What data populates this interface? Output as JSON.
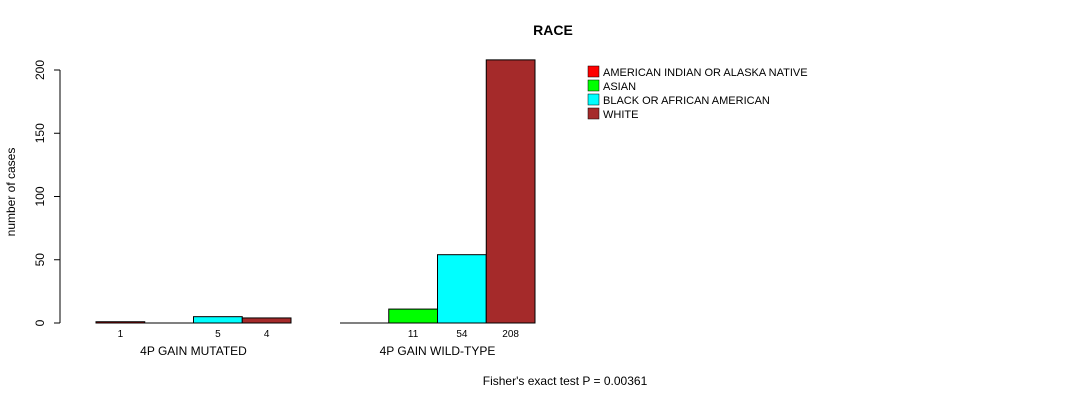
{
  "chart_data": {
    "type": "bar",
    "title": "RACE",
    "xlabel": "",
    "ylabel": "number of cases",
    "ylim": [
      0,
      200
    ],
    "yticks": [
      0,
      50,
      100,
      150,
      200
    ],
    "categories": [
      "4P GAIN MUTATED",
      "4P GAIN WILD-TYPE"
    ],
    "series": [
      {
        "name": "AMERICAN INDIAN OR ALASKA NATIVE",
        "color": "#FF0000",
        "values": [
          1,
          0
        ]
      },
      {
        "name": "ASIAN",
        "color": "#00FF00",
        "values": [
          0,
          11
        ]
      },
      {
        "name": "BLACK OR AFRICAN AMERICAN",
        "color": "#00FFFF",
        "values": [
          5,
          54
        ]
      },
      {
        "name": "WHITE",
        "color": "#A52A2A",
        "values": [
          4,
          208
        ]
      }
    ],
    "legend_position": "top-right",
    "annotation": "Fisher's exact test P = 0.00361"
  }
}
